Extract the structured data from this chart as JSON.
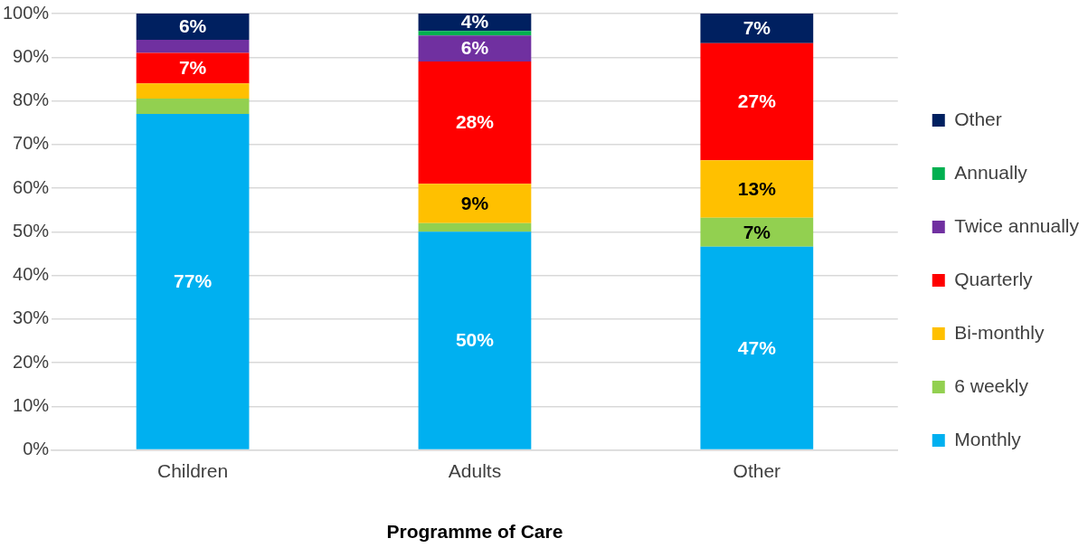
{
  "chart_data": {
    "type": "bar",
    "stacked": true,
    "xlabel": "Programme of Care",
    "categories": [
      "Children",
      "Adults",
      "Other"
    ],
    "series": [
      {
        "name": "Monthly",
        "color": "#00b0f0",
        "values": [
          77,
          50,
          46.6
        ],
        "value_labels": [
          "77%",
          "50%",
          "47%"
        ]
      },
      {
        "name": "6 weekly",
        "color": "#92d050",
        "values": [
          3.5,
          2,
          6.6
        ],
        "value_labels": [
          null,
          null,
          "7%"
        ]
      },
      {
        "name": "Bi-monthly",
        "color": "#ffc000",
        "values": [
          3.5,
          9,
          13.2
        ],
        "value_labels": [
          null,
          "9%",
          "13%"
        ]
      },
      {
        "name": "Quarterly",
        "color": "#ff0000",
        "values": [
          7,
          28,
          26.8
        ],
        "value_labels": [
          "7%",
          "28%",
          "27%"
        ]
      },
      {
        "name": "Twice annually",
        "color": "#7030a0",
        "values": [
          3,
          6,
          0
        ],
        "value_labels": [
          null,
          "6%",
          null
        ]
      },
      {
        "name": "Annually",
        "color": "#00b050",
        "values": [
          0,
          1,
          0
        ],
        "value_labels": [
          null,
          null,
          null
        ]
      },
      {
        "name": "Other",
        "color": "#002060",
        "values": [
          6,
          4,
          6.8
        ],
        "value_labels": [
          "6%",
          "4%",
          "7%"
        ]
      }
    ],
    "ylim": [
      0,
      100
    ],
    "yticks": [
      {
        "value": 0,
        "label": "0%"
      },
      {
        "value": 10,
        "label": "10%"
      },
      {
        "value": 20,
        "label": "20%"
      },
      {
        "value": 30,
        "label": "30%"
      },
      {
        "value": 40,
        "label": "40%"
      },
      {
        "value": 50,
        "label": "50%"
      },
      {
        "value": 60,
        "label": "60%"
      },
      {
        "value": 70,
        "label": "70%"
      },
      {
        "value": 80,
        "label": "80%"
      },
      {
        "value": 90,
        "label": "90%"
      },
      {
        "value": 100,
        "label": "100%"
      }
    ],
    "grid": "y",
    "legend": "right"
  }
}
